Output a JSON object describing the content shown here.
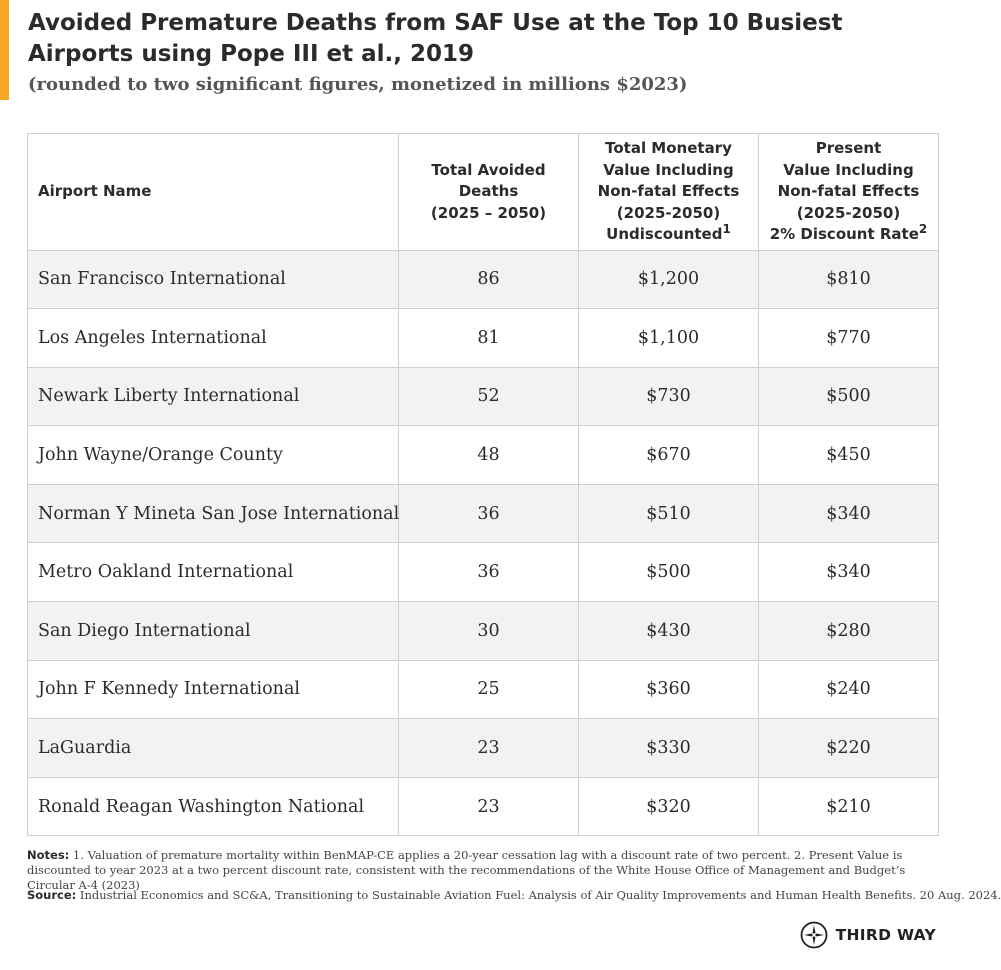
{
  "title": "Avoided Premature Deaths from SAF Use at the Top 10 Busiest Airports using Pope III et al., 2019",
  "subtitle": "(rounded to two significant figures, monetized in millions $2023)",
  "colors": {
    "accent": "#f5a623",
    "row_stripe": "#f2f2f2",
    "grid": "#cfcfcf"
  },
  "chart_data": {
    "type": "table",
    "columns": [
      {
        "lines": [
          "Airport Name"
        ],
        "sup": ""
      },
      {
        "lines": [
          "Total Avoided",
          "Deaths",
          "(2025 – 2050)"
        ],
        "sup": ""
      },
      {
        "lines": [
          "Total Monetary",
          "Value Including",
          "Non-fatal Effects",
          "(2025-2050)",
          "Undiscounted"
        ],
        "sup": "1"
      },
      {
        "lines": [
          "Present",
          "Value Including",
          "Non-fatal Effects",
          "(2025-2050)",
          "2% Discount Rate"
        ],
        "sup": "2"
      }
    ],
    "rows": [
      [
        "San Francisco International",
        "86",
        "$1,200",
        "$810"
      ],
      [
        "Los Angeles International",
        "81",
        "$1,100",
        "$770"
      ],
      [
        "Newark Liberty International",
        "52",
        "$730",
        "$500"
      ],
      [
        "John Wayne/Orange County",
        "48",
        "$670",
        "$450"
      ],
      [
        "Norman Y Mineta San Jose International",
        "36",
        "$510",
        "$340"
      ],
      [
        "Metro Oakland International",
        "36",
        "$500",
        "$340"
      ],
      [
        "San Diego International",
        "30",
        "$430",
        "$280"
      ],
      [
        "John F Kennedy International",
        "25",
        "$360",
        "$240"
      ],
      [
        "LaGuardia",
        "23",
        "$330",
        "$220"
      ],
      [
        "Ronald Reagan Washington National",
        "23",
        "$320",
        "$210"
      ]
    ]
  },
  "notes": {
    "label": "Notes:",
    "text": " 1. Valuation of premature mortality within BenMAP-CE applies a 20-year cessation lag with a discount rate of two percent. 2. Present Value is discounted to year 2023 at a two percent discount rate, consistent with the recommendations of the White House Office of Management and Budget’s Circular A-4 (2023)"
  },
  "source": {
    "label": "Source:",
    "text": " Industrial Economics and SC&A, Transitioning to Sustainable Aviation Fuel: Analysis of Air Quality Improvements and Human Health Benefits. 20 Aug. 2024."
  },
  "logo": {
    "text": "THIRD WAY",
    "icon": "compass-star-icon"
  }
}
